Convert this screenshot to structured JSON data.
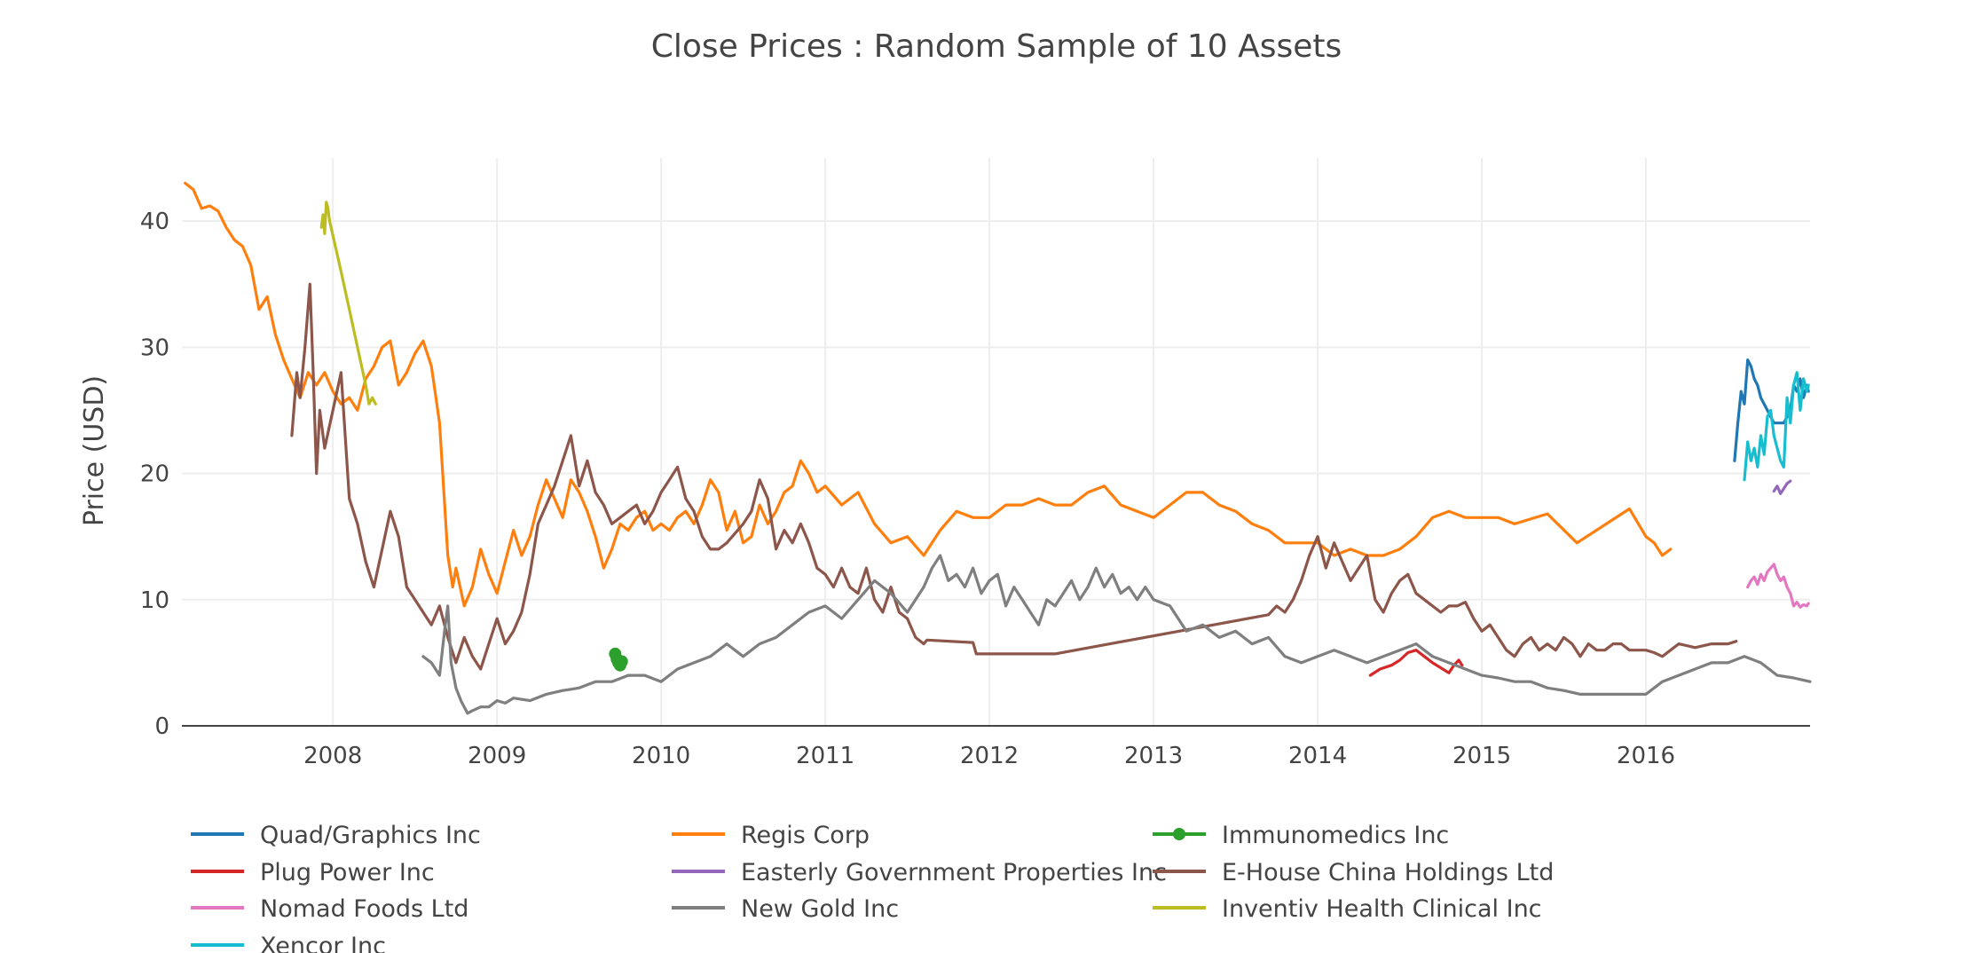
{
  "chart_data": {
    "type": "line",
    "title": "Close Prices : Random Sample of 10 Assets",
    "xlabel": "",
    "ylabel": "Price (USD)",
    "xlim": [
      2007.08,
      2017.0
    ],
    "ylim": [
      0,
      45
    ],
    "x_ticks": [
      2008,
      2009,
      2010,
      2011,
      2012,
      2013,
      2014,
      2015,
      2016
    ],
    "x_tick_labels": [
      "2008",
      "2009",
      "2010",
      "2011",
      "2012",
      "2013",
      "2014",
      "2015",
      "2016"
    ],
    "y_ticks": [
      0,
      10,
      20,
      30,
      40
    ],
    "y_tick_labels": [
      "0",
      "10",
      "20",
      "30",
      "40"
    ],
    "grid": true,
    "legend_position": "bottom",
    "series": [
      {
        "name": "Quad/Graphics Inc",
        "color": "#1f77b4",
        "mode": "lines",
        "x": [
          2016.54,
          2016.56,
          2016.58,
          2016.6,
          2016.62,
          2016.64,
          2016.66,
          2016.68,
          2016.7,
          2016.72,
          2016.74,
          2016.76,
          2016.78,
          2016.8,
          2016.84,
          2016.88,
          2016.9,
          2016.92,
          2016.94,
          2016.96,
          2016.98,
          2016.99
        ],
        "y": [
          21.0,
          24.0,
          26.5,
          25.5,
          29.0,
          28.5,
          27.5,
          27.0,
          26.0,
          25.5,
          25.0,
          24.5,
          24.0,
          24.0,
          24.0,
          25.0,
          27.0,
          26.5,
          27.5,
          26.0,
          27.0,
          26.5
        ]
      },
      {
        "name": "Regis Corp",
        "color": "#ff7f0e",
        "mode": "lines",
        "x": [
          2007.1,
          2007.15,
          2007.2,
          2007.25,
          2007.3,
          2007.35,
          2007.4,
          2007.45,
          2007.5,
          2007.55,
          2007.6,
          2007.65,
          2007.7,
          2007.75,
          2007.8,
          2007.85,
          2007.9,
          2007.95,
          2008.0,
          2008.05,
          2008.1,
          2008.15,
          2008.2,
          2008.25,
          2008.3,
          2008.35,
          2008.4,
          2008.45,
          2008.5,
          2008.55,
          2008.6,
          2008.65,
          2008.7,
          2008.73,
          2008.75,
          2008.8,
          2008.85,
          2008.9,
          2008.95,
          2009.0,
          2009.05,
          2009.1,
          2009.15,
          2009.2,
          2009.25,
          2009.3,
          2009.35,
          2009.4,
          2009.45,
          2009.5,
          2009.55,
          2009.6,
          2009.65,
          2009.7,
          2009.75,
          2009.8,
          2009.85,
          2009.9,
          2009.95,
          2010.0,
          2010.05,
          2010.1,
          2010.15,
          2010.2,
          2010.25,
          2010.3,
          2010.35,
          2010.4,
          2010.45,
          2010.5,
          2010.55,
          2010.6,
          2010.65,
          2010.7,
          2010.75,
          2010.8,
          2010.85,
          2010.9,
          2010.95,
          2011.0,
          2011.1,
          2011.2,
          2011.3,
          2011.4,
          2011.5,
          2011.6,
          2011.7,
          2011.8,
          2011.9,
          2012.0,
          2012.1,
          2012.2,
          2012.3,
          2012.4,
          2012.5,
          2012.6,
          2012.7,
          2012.8,
          2012.9,
          2013.0,
          2013.1,
          2013.2,
          2013.3,
          2013.4,
          2013.5,
          2013.6,
          2013.7,
          2013.8,
          2013.9,
          2014.0,
          2014.1,
          2014.2,
          2014.3,
          2014.4,
          2014.5,
          2014.6,
          2014.7,
          2014.8,
          2014.9,
          2015.0,
          2015.1,
          2015.2,
          2015.4,
          2015.58,
          2015.9,
          2016.0,
          2016.05,
          2016.1,
          2016.15
        ],
        "y": [
          43.0,
          42.5,
          41.0,
          41.2,
          40.8,
          39.5,
          38.5,
          38.0,
          36.5,
          33.0,
          34.0,
          31.0,
          29.0,
          27.5,
          26.0,
          28.0,
          27.0,
          28.0,
          26.5,
          25.5,
          26.0,
          25.0,
          27.5,
          28.5,
          30.0,
          30.5,
          27.0,
          28.0,
          29.5,
          30.5,
          28.5,
          24.0,
          13.5,
          11.0,
          12.5,
          9.5,
          11.0,
          14.0,
          12.0,
          10.5,
          13.0,
          15.5,
          13.5,
          15.0,
          17.5,
          19.5,
          18.0,
          16.5,
          19.5,
          18.5,
          17.0,
          15.0,
          12.5,
          14.0,
          16.0,
          15.5,
          16.5,
          17.0,
          15.5,
          16.0,
          15.5,
          16.5,
          17.0,
          16.0,
          17.5,
          19.5,
          18.5,
          15.5,
          17.0,
          14.5,
          15.0,
          17.5,
          16.0,
          17.0,
          18.5,
          19.0,
          21.0,
          20.0,
          18.5,
          19.0,
          17.5,
          18.5,
          16.0,
          14.5,
          15.0,
          13.5,
          15.5,
          17.0,
          16.5,
          16.5,
          17.5,
          17.5,
          18.0,
          17.5,
          17.5,
          18.5,
          19.0,
          17.5,
          17.0,
          16.5,
          17.5,
          18.5,
          18.5,
          17.5,
          17.0,
          16.0,
          15.5,
          14.5,
          14.5,
          14.5,
          13.5,
          14.0,
          13.5,
          13.5,
          14.0,
          15.0,
          16.5,
          17.0,
          16.5,
          16.5,
          16.5,
          16.0,
          16.8,
          14.5,
          17.2,
          15.0,
          14.5,
          13.5,
          14.0
        ]
      },
      {
        "name": "Immunomedics Inc",
        "color": "#2ca02c",
        "mode": "lines+markers",
        "x": [
          2009.72,
          2009.73,
          2009.74,
          2009.75,
          2009.76
        ],
        "y": [
          5.7,
          5.3,
          5.0,
          4.8,
          5.1
        ]
      },
      {
        "name": "Plug Power Inc",
        "color": "#d62728",
        "mode": "lines",
        "x": [
          2014.32,
          2014.38,
          2014.45,
          2014.5,
          2014.55,
          2014.6,
          2014.65,
          2014.7,
          2014.75,
          2014.8,
          2014.83,
          2014.86,
          2014.88
        ],
        "y": [
          4.0,
          4.5,
          4.8,
          5.2,
          5.8,
          6.0,
          5.5,
          5.0,
          4.6,
          4.2,
          4.8,
          5.2,
          4.8
        ]
      },
      {
        "name": "Easterly Government Properties Inc",
        "color": "#9467bd",
        "mode": "lines",
        "x": [
          2016.78,
          2016.8,
          2016.82,
          2016.84,
          2016.86,
          2016.88
        ],
        "y": [
          18.6,
          19.0,
          18.4,
          18.8,
          19.2,
          19.4
        ]
      },
      {
        "name": "E-House China Holdings Ltd",
        "color": "#8c564b",
        "mode": "lines",
        "x": [
          2007.75,
          2007.78,
          2007.8,
          2007.83,
          2007.86,
          2007.88,
          2007.9,
          2007.92,
          2007.95,
          2008.0,
          2008.05,
          2008.1,
          2008.15,
          2008.2,
          2008.25,
          2008.3,
          2008.35,
          2008.4,
          2008.45,
          2008.5,
          2008.55,
          2008.6,
          2008.65,
          2008.7,
          2008.75,
          2008.8,
          2008.85,
          2008.9,
          2008.95,
          2009.0,
          2009.05,
          2009.1,
          2009.15,
          2009.2,
          2009.25,
          2009.3,
          2009.35,
          2009.4,
          2009.45,
          2009.5,
          2009.55,
          2009.6,
          2009.65,
          2009.7,
          2009.75,
          2009.8,
          2009.85,
          2009.9,
          2009.95,
          2010.0,
          2010.05,
          2010.1,
          2010.15,
          2010.2,
          2010.25,
          2010.3,
          2010.35,
          2010.4,
          2010.5,
          2010.55,
          2010.6,
          2010.65,
          2010.7,
          2010.75,
          2010.8,
          2010.85,
          2010.9,
          2010.95,
          2011.0,
          2011.05,
          2011.1,
          2011.15,
          2011.2,
          2011.25,
          2011.3,
          2011.35,
          2011.4,
          2011.45,
          2011.5,
          2011.55,
          2011.6,
          2011.62,
          2011.9,
          2011.92,
          2012.4,
          2013.7,
          2013.75,
          2013.8,
          2013.85,
          2013.9,
          2013.95,
          2014.0,
          2014.05,
          2014.1,
          2014.15,
          2014.2,
          2014.25,
          2014.3,
          2014.35,
          2014.4,
          2014.45,
          2014.5,
          2014.55,
          2014.6,
          2014.65,
          2014.7,
          2014.75,
          2014.8,
          2014.85,
          2014.9,
          2014.95,
          2015.0,
          2015.05,
          2015.1,
          2015.15,
          2015.2,
          2015.25,
          2015.3,
          2015.35,
          2015.4,
          2015.45,
          2015.5,
          2015.55,
          2015.6,
          2015.65,
          2015.7,
          2015.75,
          2015.8,
          2015.85,
          2015.9,
          2015.95,
          2016.0,
          2016.05,
          2016.1,
          2016.15,
          2016.2,
          2016.3,
          2016.4,
          2016.5,
          2016.55
        ],
        "y": [
          23.0,
          28.0,
          26.0,
          30.0,
          35.0,
          28.0,
          20.0,
          25.0,
          22.0,
          25.0,
          28.0,
          18.0,
          16.0,
          13.0,
          11.0,
          14.0,
          17.0,
          15.0,
          11.0,
          10.0,
          9.0,
          8.0,
          9.5,
          7.0,
          5.0,
          7.0,
          5.5,
          4.5,
          6.5,
          8.5,
          6.5,
          7.5,
          9.0,
          12.0,
          16.0,
          17.5,
          19.0,
          21.0,
          23.0,
          19.0,
          21.0,
          18.5,
          17.5,
          16.0,
          16.5,
          17.0,
          17.5,
          16.0,
          17.0,
          18.5,
          19.5,
          20.5,
          18.0,
          17.0,
          15.0,
          14.0,
          14.0,
          14.5,
          16.0,
          17.0,
          19.5,
          18.0,
          14.0,
          15.5,
          14.5,
          16.0,
          14.5,
          12.5,
          12.0,
          11.0,
          12.5,
          11.0,
          10.5,
          12.5,
          10.0,
          9.0,
          11.0,
          9.0,
          8.5,
          7.0,
          6.5,
          6.8,
          6.6,
          5.7,
          5.7,
          8.8,
          9.5,
          9.0,
          10.0,
          11.5,
          13.5,
          15.0,
          12.5,
          14.5,
          13.0,
          11.5,
          12.5,
          13.5,
          10.0,
          9.0,
          10.5,
          11.5,
          12.0,
          10.5,
          10.0,
          9.5,
          9.0,
          9.5,
          9.5,
          9.8,
          8.5,
          7.5,
          8.0,
          7.0,
          6.0,
          5.5,
          6.5,
          7.0,
          6.0,
          6.5,
          6.0,
          7.0,
          6.5,
          5.5,
          6.5,
          6.0,
          6.0,
          6.5,
          6.5,
          6.0,
          6.0,
          6.0,
          5.8,
          5.5,
          6.0,
          6.5,
          6.2,
          6.5,
          6.5,
          6.7
        ]
      },
      {
        "name": "Nomad Foods Ltd",
        "color": "#e377c2",
        "mode": "lines",
        "x": [
          2016.62,
          2016.64,
          2016.66,
          2016.68,
          2016.7,
          2016.72,
          2016.74,
          2016.76,
          2016.78,
          2016.8,
          2016.82,
          2016.84,
          2016.86,
          2016.88,
          2016.9,
          2016.92,
          2016.94,
          2016.96,
          2016.98,
          2016.99
        ],
        "y": [
          11.0,
          11.5,
          11.8,
          11.2,
          12.0,
          11.5,
          12.2,
          12.5,
          12.8,
          12.0,
          11.5,
          11.8,
          11.0,
          10.5,
          9.5,
          9.8,
          9.4,
          9.6,
          9.5,
          9.7
        ]
      },
      {
        "name": "New Gold Inc",
        "color": "#7f7f7f",
        "mode": "lines",
        "x": [
          2008.55,
          2008.6,
          2008.65,
          2008.68,
          2008.7,
          2008.72,
          2008.75,
          2008.78,
          2008.8,
          2008.82,
          2008.85,
          2008.9,
          2008.95,
          2009.0,
          2009.05,
          2009.1,
          2009.2,
          2009.3,
          2009.4,
          2009.5,
          2009.6,
          2009.7,
          2009.8,
          2009.9,
          2010.0,
          2010.1,
          2010.2,
          2010.3,
          2010.4,
          2010.5,
          2010.6,
          2010.7,
          2010.8,
          2010.9,
          2011.0,
          2011.1,
          2011.2,
          2011.3,
          2011.4,
          2011.5,
          2011.55,
          2011.6,
          2011.65,
          2011.7,
          2011.75,
          2011.8,
          2011.85,
          2011.9,
          2011.95,
          2012.0,
          2012.05,
          2012.1,
          2012.15,
          2012.2,
          2012.25,
          2012.3,
          2012.35,
          2012.4,
          2012.45,
          2012.5,
          2012.55,
          2012.6,
          2012.65,
          2012.7,
          2012.75,
          2012.8,
          2012.85,
          2012.9,
          2012.95,
          2013.0,
          2013.1,
          2013.2,
          2013.3,
          2013.4,
          2013.5,
          2013.6,
          2013.7,
          2013.8,
          2013.9,
          2014.0,
          2014.1,
          2014.2,
          2014.3,
          2014.4,
          2014.5,
          2014.6,
          2014.7,
          2014.8,
          2014.9,
          2015.0,
          2015.1,
          2015.2,
          2015.3,
          2015.4,
          2015.5,
          2015.6,
          2015.7,
          2015.8,
          2015.9,
          2016.0,
          2016.1,
          2016.2,
          2016.3,
          2016.4,
          2016.5,
          2016.6,
          2016.7,
          2016.8,
          2016.9,
          2017.0
        ],
        "y": [
          5.5,
          5.0,
          4.0,
          7.5,
          9.5,
          5.0,
          3.0,
          2.0,
          1.5,
          1.0,
          1.2,
          1.5,
          1.5,
          2.0,
          1.8,
          2.2,
          2.0,
          2.5,
          2.8,
          3.0,
          3.5,
          3.5,
          4.0,
          4.0,
          3.5,
          4.5,
          5.0,
          5.5,
          6.5,
          5.5,
          6.5,
          7.0,
          8.0,
          9.0,
          9.5,
          8.5,
          10.0,
          11.5,
          10.5,
          9.0,
          10.0,
          11.0,
          12.5,
          13.5,
          11.5,
          12.0,
          11.0,
          12.5,
          10.5,
          11.5,
          12.0,
          9.5,
          11.0,
          10.0,
          9.0,
          8.0,
          10.0,
          9.5,
          10.5,
          11.5,
          10.0,
          11.0,
          12.5,
          11.0,
          12.0,
          10.5,
          11.0,
          10.0,
          11.0,
          10.0,
          9.5,
          7.5,
          8.0,
          7.0,
          7.5,
          6.5,
          7.0,
          5.5,
          5.0,
          5.5,
          6.0,
          5.5,
          5.0,
          5.5,
          6.0,
          6.5,
          5.5,
          5.0,
          4.5,
          4.0,
          3.8,
          3.5,
          3.5,
          3.0,
          2.8,
          2.5,
          2.5,
          2.5,
          2.5,
          2.5,
          3.5,
          4.0,
          4.5,
          5.0,
          5.0,
          5.5,
          5.0,
          4.0,
          3.8,
          3.5
        ]
      },
      {
        "name": "Inventiv Health Clinical Inc",
        "color": "#bcbd22",
        "mode": "lines",
        "x": [
          2007.93,
          2007.94,
          2007.95,
          2007.96,
          2007.97,
          2007.98,
          2008.05,
          2008.1,
          2008.15,
          2008.2,
          2008.22,
          2008.24,
          2008.26
        ],
        "y": [
          39.5,
          40.5,
          39.0,
          41.5,
          41.0,
          40.0,
          36.0,
          33.0,
          30.0,
          27.0,
          25.5,
          26.0,
          25.5
        ]
      },
      {
        "name": "Xencor Inc",
        "color": "#17becf",
        "mode": "lines",
        "x": [
          2016.6,
          2016.62,
          2016.64,
          2016.66,
          2016.68,
          2016.7,
          2016.72,
          2016.74,
          2016.76,
          2016.78,
          2016.8,
          2016.82,
          2016.84,
          2016.86,
          2016.88,
          2016.9,
          2016.92,
          2016.94,
          2016.96,
          2016.98,
          2016.99
        ],
        "y": [
          19.5,
          22.5,
          21.0,
          22.0,
          20.5,
          23.0,
          21.5,
          24.5,
          25.0,
          23.0,
          22.0,
          21.0,
          20.5,
          26.0,
          24.0,
          27.0,
          28.0,
          25.0,
          27.5,
          26.5,
          27.0
        ]
      }
    ]
  }
}
